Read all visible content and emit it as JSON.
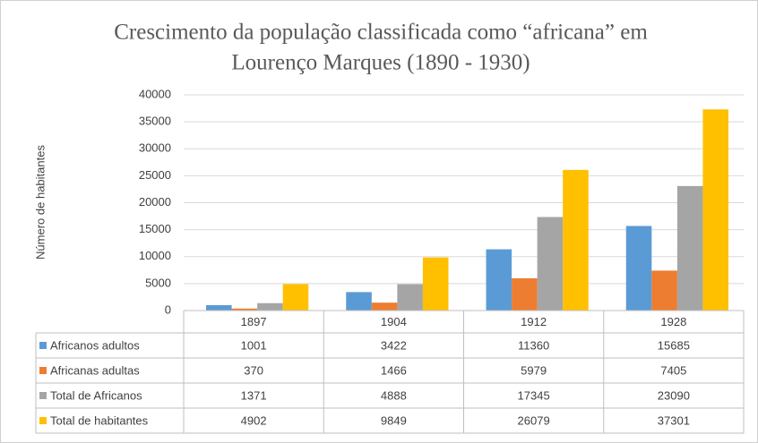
{
  "chart_data": {
    "type": "bar",
    "title": [
      "Crescimento da população classificada como “africana” em",
      "Lourenço Marques (1890 - 1930)"
    ],
    "ylabel": "Número de habitantes",
    "categories": [
      "1897",
      "1904",
      "1912",
      "1928"
    ],
    "series": [
      {
        "name": "Africanos adultos",
        "color": "#5b9bd5",
        "values": [
          1001,
          3422,
          11360,
          15685
        ]
      },
      {
        "name": "Africanas adultas",
        "color": "#ed7d31",
        "values": [
          370,
          1466,
          5979,
          7405
        ]
      },
      {
        "name": "Total de Africanos",
        "color": "#a5a5a5",
        "values": [
          1371,
          4888,
          17345,
          23090
        ]
      },
      {
        "name": "Total de habitantes",
        "color": "#ffc000",
        "values": [
          4902,
          9849,
          26079,
          37301
        ]
      }
    ],
    "ylim": [
      0,
      40000
    ],
    "yticks": [
      0,
      5000,
      10000,
      15000,
      20000,
      25000,
      30000,
      35000,
      40000
    ],
    "grid": true
  }
}
